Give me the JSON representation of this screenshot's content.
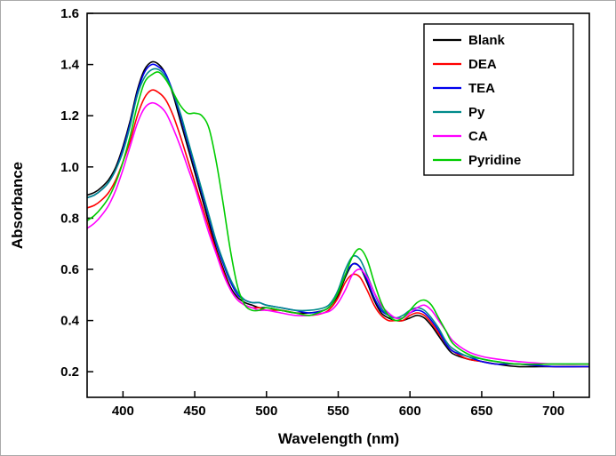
{
  "chart_data": {
    "type": "line",
    "title": "",
    "xlabel": "Wavelength (nm)",
    "ylabel": "Absorbance",
    "xlim": [
      375,
      725
    ],
    "ylim": [
      0.1,
      1.6
    ],
    "xticks": [
      400,
      450,
      500,
      550,
      600,
      650,
      700
    ],
    "yticks": [
      0.2,
      0.4,
      0.6,
      0.8,
      1.0,
      1.2,
      1.4,
      1.6
    ],
    "grid": false,
    "legend_position": "top-right",
    "x": [
      375,
      380,
      385,
      390,
      395,
      400,
      405,
      410,
      415,
      420,
      425,
      430,
      435,
      440,
      445,
      450,
      455,
      460,
      465,
      470,
      475,
      480,
      485,
      490,
      495,
      500,
      510,
      520,
      530,
      540,
      545,
      550,
      555,
      560,
      565,
      570,
      575,
      580,
      585,
      590,
      595,
      600,
      605,
      610,
      615,
      620,
      625,
      630,
      640,
      650,
      660,
      675,
      700,
      725
    ],
    "series": [
      {
        "name": "Blank",
        "color": "#000000",
        "values": [
          0.89,
          0.9,
          0.92,
          0.95,
          1.0,
          1.08,
          1.18,
          1.3,
          1.38,
          1.41,
          1.4,
          1.36,
          1.28,
          1.18,
          1.08,
          0.98,
          0.88,
          0.78,
          0.68,
          0.6,
          0.53,
          0.49,
          0.47,
          0.46,
          0.45,
          0.45,
          0.44,
          0.43,
          0.43,
          0.44,
          0.46,
          0.5,
          0.57,
          0.62,
          0.61,
          0.55,
          0.48,
          0.43,
          0.41,
          0.4,
          0.4,
          0.41,
          0.42,
          0.41,
          0.38,
          0.34,
          0.3,
          0.27,
          0.25,
          0.24,
          0.23,
          0.22,
          0.22,
          0.22
        ]
      },
      {
        "name": "DEA",
        "color": "#ff0000",
        "values": [
          0.84,
          0.85,
          0.87,
          0.9,
          0.95,
          1.02,
          1.1,
          1.2,
          1.27,
          1.3,
          1.29,
          1.26,
          1.2,
          1.12,
          1.03,
          0.94,
          0.85,
          0.76,
          0.67,
          0.59,
          0.52,
          0.48,
          0.46,
          0.45,
          0.45,
          0.44,
          0.44,
          0.43,
          0.42,
          0.43,
          0.45,
          0.49,
          0.55,
          0.58,
          0.57,
          0.52,
          0.46,
          0.42,
          0.4,
          0.4,
          0.4,
          0.42,
          0.43,
          0.42,
          0.39,
          0.35,
          0.31,
          0.28,
          0.25,
          0.24,
          0.23,
          0.23,
          0.22,
          0.22
        ]
      },
      {
        "name": "TEA",
        "color": "#0000ee",
        "values": [
          0.88,
          0.89,
          0.91,
          0.94,
          0.99,
          1.07,
          1.17,
          1.29,
          1.37,
          1.4,
          1.39,
          1.36,
          1.29,
          1.2,
          1.1,
          1.0,
          0.9,
          0.8,
          0.7,
          0.62,
          0.55,
          0.5,
          0.48,
          0.47,
          0.47,
          0.46,
          0.45,
          0.44,
          0.43,
          0.44,
          0.46,
          0.51,
          0.58,
          0.62,
          0.61,
          0.56,
          0.49,
          0.44,
          0.42,
          0.41,
          0.41,
          0.43,
          0.44,
          0.43,
          0.4,
          0.36,
          0.31,
          0.28,
          0.26,
          0.24,
          0.23,
          0.23,
          0.22,
          0.22
        ]
      },
      {
        "name": "Py",
        "color": "#008b8b",
        "values": [
          0.88,
          0.89,
          0.91,
          0.94,
          0.99,
          1.06,
          1.16,
          1.28,
          1.35,
          1.38,
          1.38,
          1.35,
          1.29,
          1.21,
          1.11,
          1.01,
          0.91,
          0.81,
          0.71,
          0.63,
          0.56,
          0.51,
          0.48,
          0.47,
          0.47,
          0.46,
          0.45,
          0.44,
          0.44,
          0.45,
          0.47,
          0.52,
          0.6,
          0.65,
          0.64,
          0.58,
          0.51,
          0.45,
          0.42,
          0.41,
          0.42,
          0.44,
          0.45,
          0.44,
          0.41,
          0.37,
          0.32,
          0.29,
          0.26,
          0.25,
          0.24,
          0.23,
          0.23,
          0.23
        ]
      },
      {
        "name": "CA",
        "color": "#ff00ff",
        "values": [
          0.76,
          0.78,
          0.81,
          0.85,
          0.91,
          0.99,
          1.08,
          1.17,
          1.23,
          1.25,
          1.24,
          1.21,
          1.15,
          1.08,
          1.0,
          0.92,
          0.83,
          0.74,
          0.66,
          0.58,
          0.52,
          0.48,
          0.46,
          0.45,
          0.44,
          0.44,
          0.43,
          0.42,
          0.42,
          0.43,
          0.44,
          0.47,
          0.52,
          0.58,
          0.6,
          0.57,
          0.51,
          0.46,
          0.43,
          0.41,
          0.41,
          0.43,
          0.45,
          0.46,
          0.44,
          0.4,
          0.36,
          0.32,
          0.28,
          0.26,
          0.25,
          0.24,
          0.23,
          0.23
        ]
      },
      {
        "name": "Pyridine",
        "color": "#00cc00",
        "values": [
          0.79,
          0.81,
          0.84,
          0.88,
          0.94,
          1.02,
          1.12,
          1.24,
          1.33,
          1.36,
          1.37,
          1.34,
          1.29,
          1.24,
          1.21,
          1.21,
          1.2,
          1.15,
          1.02,
          0.85,
          0.67,
          0.53,
          0.46,
          0.44,
          0.44,
          0.45,
          0.44,
          0.43,
          0.42,
          0.44,
          0.46,
          0.51,
          0.58,
          0.65,
          0.68,
          0.64,
          0.55,
          0.47,
          0.42,
          0.4,
          0.41,
          0.44,
          0.47,
          0.48,
          0.46,
          0.41,
          0.36,
          0.31,
          0.27,
          0.25,
          0.24,
          0.23,
          0.23,
          0.23
        ]
      }
    ]
  }
}
